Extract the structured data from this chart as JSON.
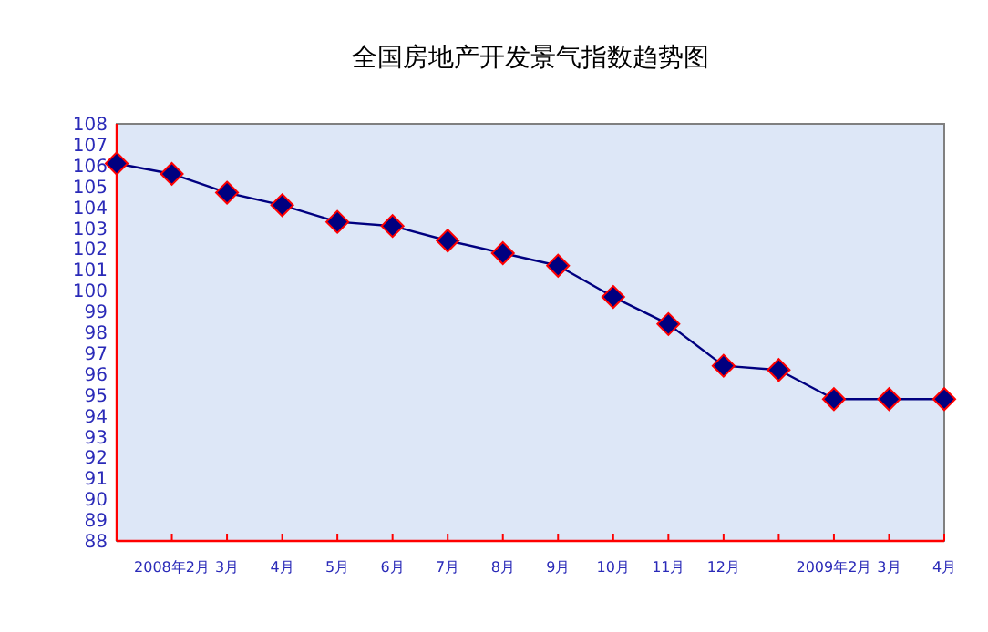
{
  "chart_data": {
    "type": "line",
    "title": "全国房地产开发景气指数趋势图",
    "categories": [
      null,
      "2008年2月",
      "3月",
      "4月",
      "5月",
      "6月",
      "7月",
      "8月",
      "9月",
      "10月",
      "11月",
      "12月",
      null,
      "2009年2月",
      "3月",
      "4月"
    ],
    "series": [
      {
        "color": "#000080",
        "values": [
          106.1,
          105.6,
          104.7,
          104.1,
          103.3,
          103.1,
          102.4,
          101.8,
          101.2,
          99.7,
          98.4,
          96.4,
          96.2,
          94.8,
          94.8,
          94.8
        ]
      }
    ],
    "ylim": [
      88,
      108
    ],
    "yticks": [
      88,
      89,
      90,
      91,
      92,
      93,
      94,
      95,
      96,
      97,
      98,
      99,
      100,
      101,
      102,
      103,
      104,
      105,
      106,
      107,
      108
    ],
    "marker": "diamond",
    "line_style": "solid",
    "grid": false
  }
}
